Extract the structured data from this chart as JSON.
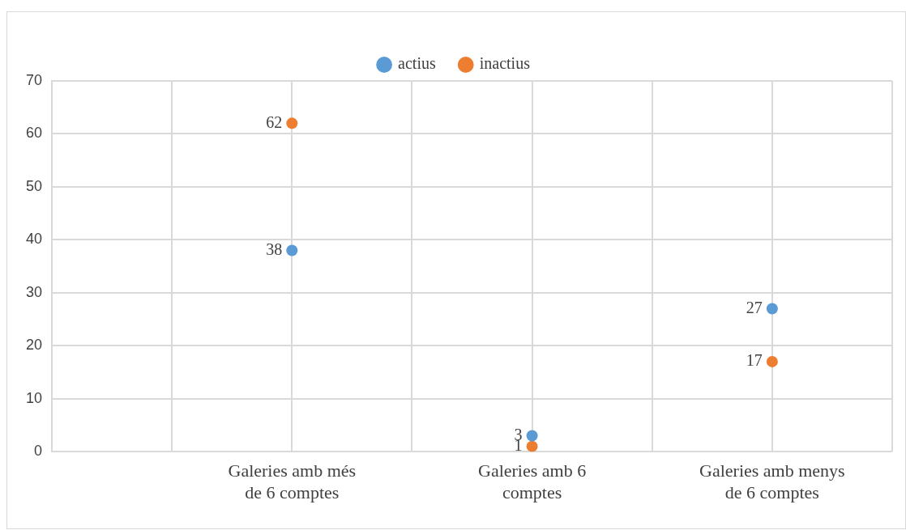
{
  "chart_data": {
    "type": "scatter",
    "categories": [
      "Galeries amb més de 6 comptes",
      "Galeries amb 6 comptes",
      "Galeries amb menys de 6 comptes"
    ],
    "series": [
      {
        "name": "actius",
        "color": "#5b9bd5",
        "values": [
          38,
          3,
          27
        ]
      },
      {
        "name": "inactius",
        "color": "#ed7d31",
        "values": [
          62,
          1,
          17
        ]
      }
    ],
    "ylim": [
      0,
      70
    ],
    "yticks": [
      0,
      10,
      20,
      30,
      40,
      50,
      60,
      70
    ],
    "grid": true,
    "legend": "top",
    "marker": "circle",
    "data_labels": true
  }
}
